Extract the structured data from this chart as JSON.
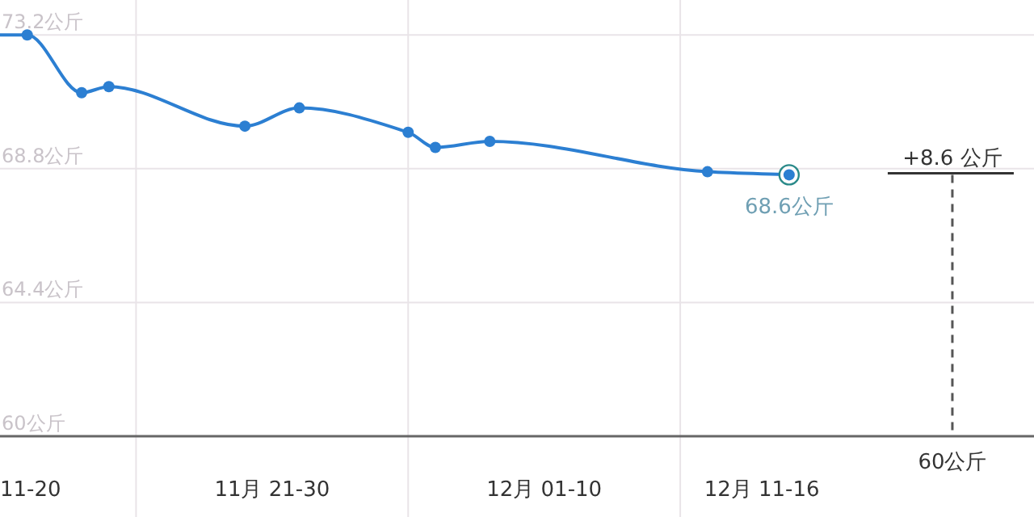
{
  "chart_data": {
    "type": "line",
    "x": [
      "--11-16",
      "--11-17",
      "--11-19",
      "--11-20",
      "--11-25",
      "--11-27",
      "--12-01",
      "--12-02",
      "--12-04",
      "--12-12",
      "--12-15"
    ],
    "values": [
      73.2,
      73.2,
      71.3,
      71.5,
      70.2,
      70.8,
      70.0,
      69.5,
      69.7,
      68.7,
      68.6
    ],
    "value_labels": [
      null,
      null,
      null,
      null,
      null,
      null,
      null,
      null,
      null,
      null,
      "68.6公斤"
    ],
    "color": "#2c7fd2",
    "marker": "circle",
    "line_style": "solid",
    "grid": true,
    "xlim": [
      "--11-16",
      "--12-24"
    ],
    "ylim": [
      60,
      74.35
    ],
    "xticks": [
      {
        "value": "--11-16",
        "label": "11-20"
      },
      {
        "value": "--11-21",
        "label": null
      },
      {
        "value": "--11-26",
        "label": "11月 21-30"
      },
      {
        "value": "--12-01",
        "label": null
      },
      {
        "value": "--12-06",
        "label": "12月 01-10"
      },
      {
        "value": "--12-11",
        "label": null
      },
      {
        "value": "--12-14",
        "label": "12月 11-16"
      }
    ],
    "yticks": [
      {
        "value": 60,
        "label": "60公斤"
      },
      {
        "value": 64.4,
        "label": "64.4公斤"
      },
      {
        "value": 68.8,
        "label": "68.8公斤"
      },
      {
        "value": 73.2,
        "label": "73.2公斤"
      }
    ],
    "ref_lines": [
      {
        "axis": "x",
        "value": "--12-21",
        "label": "60公斤",
        "line_style": "dashed",
        "color": "#555555"
      }
    ],
    "annotations": [
      {
        "text": "+8.6 公斤",
        "x": "--12-21",
        "y": 68.6
      }
    ]
  }
}
